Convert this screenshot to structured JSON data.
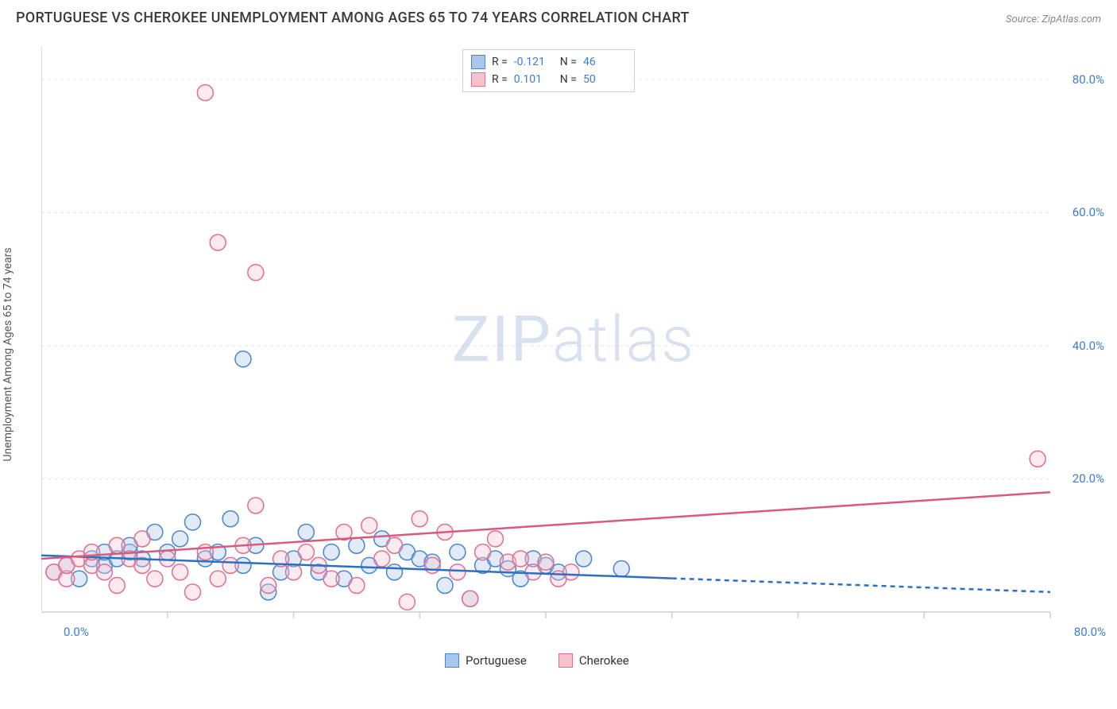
{
  "title": "PORTUGUESE VS CHEROKEE UNEMPLOYMENT AMONG AGES 65 TO 74 YEARS CORRELATION CHART",
  "source": "Source: ZipAtlas.com",
  "ylabel": "Unemployment Among Ages 65 to 74 years",
  "watermark": {
    "a": "ZIP",
    "b": "atlas"
  },
  "chart": {
    "type": "scatter",
    "background_color": "#ffffff",
    "grid_color": "#e6e6e6",
    "axis_color": "#cfcfcf",
    "tick_font_color": "#3b7dd8",
    "tick_fontsize": 15,
    "label_fontsize": 14,
    "label_color": "#555555",
    "xlim": [
      0,
      80
    ],
    "ylim": [
      0,
      85
    ],
    "x_ticks_minor": [
      10,
      20,
      30,
      40,
      50,
      60,
      70,
      80
    ],
    "y_ticks": [
      20,
      40,
      60,
      80
    ],
    "x_origin_label": "0.0%",
    "x_end_label": "80.0%",
    "y_tick_labels": [
      "20.0%",
      "40.0%",
      "60.0%",
      "80.0%"
    ],
    "marker_radius": 10,
    "marker_stroke_width": 1.5,
    "marker_fill_opacity": 0.35,
    "trend_line_width": 2.5,
    "trend_dash": "6 5"
  },
  "series": [
    {
      "key": "portuguese",
      "label": "Portuguese",
      "fill": "#a9c6ec",
      "stroke": "#4a86d0",
      "line_color": "#2f6fc2",
      "R": "-0.121",
      "N": "46",
      "trend": {
        "y_at_x0": 8.5,
        "y_at_x80": 3.0,
        "solid_until_x": 50
      },
      "points": [
        [
          1,
          6
        ],
        [
          2,
          7
        ],
        [
          3,
          5
        ],
        [
          4,
          8
        ],
        [
          5,
          7
        ],
        [
          5,
          9
        ],
        [
          6,
          8
        ],
        [
          7,
          9
        ],
        [
          7,
          10
        ],
        [
          8,
          8
        ],
        [
          9,
          12
        ],
        [
          10,
          9
        ],
        [
          11,
          11
        ],
        [
          12,
          13.5
        ],
        [
          13,
          8
        ],
        [
          14,
          9
        ],
        [
          15,
          14
        ],
        [
          16,
          7
        ],
        [
          17,
          10
        ],
        [
          18,
          3
        ],
        [
          16,
          38
        ],
        [
          19,
          6
        ],
        [
          20,
          8
        ],
        [
          21,
          12
        ],
        [
          22,
          6
        ],
        [
          23,
          9
        ],
        [
          24,
          5
        ],
        [
          25,
          10
        ],
        [
          26,
          7
        ],
        [
          27,
          11
        ],
        [
          28,
          6
        ],
        [
          29,
          9
        ],
        [
          30,
          8
        ],
        [
          31,
          7.5
        ],
        [
          32,
          4
        ],
        [
          33,
          9
        ],
        [
          34,
          2
        ],
        [
          35,
          7
        ],
        [
          36,
          8
        ],
        [
          37,
          6.5
        ],
        [
          38,
          5
        ],
        [
          39,
          8
        ],
        [
          40,
          7
        ],
        [
          41,
          6
        ],
        [
          43,
          8
        ],
        [
          46,
          6.5
        ]
      ]
    },
    {
      "key": "cherokee",
      "label": "Cherokee",
      "fill": "#f6c2ce",
      "stroke": "#e36f8f",
      "line_color": "#d85a7f",
      "R": "0.101",
      "N": "50",
      "trend": {
        "y_at_x0": 8.0,
        "y_at_x80": 18.0,
        "solid_until_x": 80
      },
      "points": [
        [
          1,
          6
        ],
        [
          2,
          5
        ],
        [
          2,
          7
        ],
        [
          3,
          8
        ],
        [
          4,
          7
        ],
        [
          4,
          9
        ],
        [
          5,
          6
        ],
        [
          6,
          10
        ],
        [
          6,
          4
        ],
        [
          7,
          8
        ],
        [
          8,
          7
        ],
        [
          8,
          11
        ],
        [
          9,
          5
        ],
        [
          10,
          8
        ],
        [
          11,
          6
        ],
        [
          12,
          3
        ],
        [
          13,
          78
        ],
        [
          13,
          9
        ],
        [
          14,
          5
        ],
        [
          14,
          55.5
        ],
        [
          15,
          7
        ],
        [
          16,
          10
        ],
        [
          17,
          16
        ],
        [
          17,
          51
        ],
        [
          18,
          4
        ],
        [
          19,
          8
        ],
        [
          20,
          6
        ],
        [
          21,
          9
        ],
        [
          22,
          7
        ],
        [
          23,
          5
        ],
        [
          24,
          12
        ],
        [
          25,
          4
        ],
        [
          26,
          13
        ],
        [
          27,
          8
        ],
        [
          28,
          10
        ],
        [
          29,
          1.5
        ],
        [
          30,
          14
        ],
        [
          31,
          7
        ],
        [
          32,
          12
        ],
        [
          33,
          6
        ],
        [
          34,
          2
        ],
        [
          35,
          9
        ],
        [
          36,
          11
        ],
        [
          37,
          7.5
        ],
        [
          38,
          8
        ],
        [
          39,
          6
        ],
        [
          40,
          7.5
        ],
        [
          41,
          5
        ],
        [
          42,
          6
        ],
        [
          79,
          23
        ]
      ]
    }
  ],
  "stats_legend_labels": {
    "R": "R =",
    "N": "N ="
  },
  "bottom_legend": [
    "Portuguese",
    "Cherokee"
  ]
}
